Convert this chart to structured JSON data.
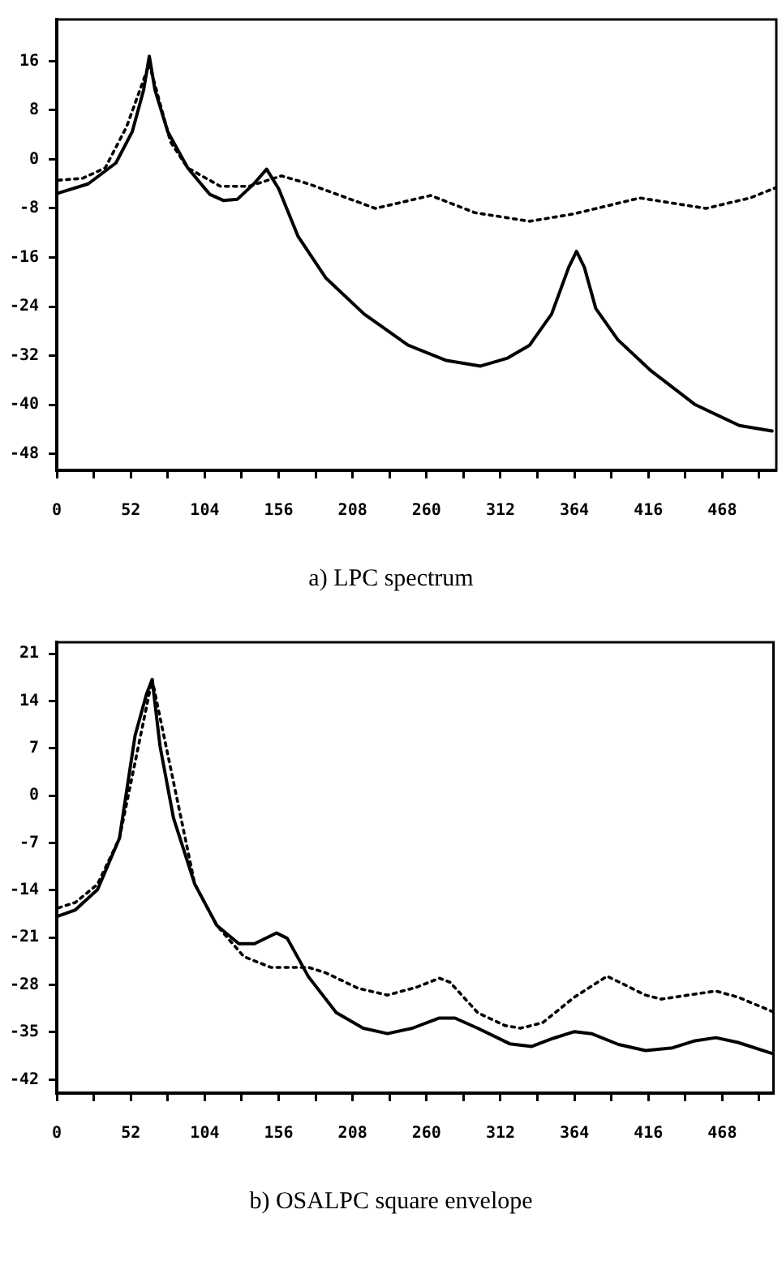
{
  "chart_data": [
    {
      "type": "line",
      "title": "a) LPC spectrum",
      "xlim": [
        0,
        506
      ],
      "ylim": [
        -50.7,
        22.8
      ],
      "xticks": [
        0,
        {
          "value": 26,
          "label": null
        },
        52,
        {
          "value": 78,
          "label": null
        },
        104,
        {
          "value": 130,
          "label": null
        },
        156,
        {
          "value": 182,
          "label": null
        },
        208,
        {
          "value": 234,
          "label": null
        },
        260,
        {
          "value": 286,
          "label": null
        },
        312,
        {
          "value": 338,
          "label": null
        },
        364,
        {
          "value": 390,
          "label": null
        },
        416,
        {
          "value": 442,
          "label": null
        },
        468,
        {
          "value": 494,
          "label": null
        }
      ],
      "yticks": [
        -48,
        -40,
        -32,
        -24,
        -16,
        -8,
        0,
        8,
        16
      ],
      "grid": false,
      "legend": false,
      "series": [
        {
          "color": "#000000",
          "line_style": "solid",
          "x": [
            1,
            22,
            41.5,
            53,
            61,
            65,
            69,
            78,
            92,
            107.5,
            117,
            127,
            138.5,
            147.5,
            156,
            169.5,
            189,
            216,
            247,
            274,
            298,
            317,
            332.5,
            348,
            360,
            365.5,
            371,
            379,
            394.5,
            418,
            449,
            480,
            503
          ],
          "values": [
            -5.5,
            -4,
            -0.6,
            4.5,
            11.3,
            16.8,
            11.3,
            4.5,
            -1.4,
            -5.7,
            -6.7,
            -6.5,
            -4,
            -1.6,
            -4.8,
            -12.5,
            -19.3,
            -25.2,
            -30.3,
            -32.8,
            -33.7,
            -32.4,
            -30.3,
            -25.2,
            -17.6,
            -15,
            -17.6,
            -24.3,
            -29.4,
            -34.5,
            -40,
            -43.4,
            -44.3
          ]
        },
        {
          "color": "#000000",
          "line_style": "dotted",
          "x": [
            1,
            18,
            34,
            49,
            65,
            80,
            92,
            115,
            135,
            158,
            177,
            224,
            263,
            294,
            332.5,
            363.5,
            410,
            456.5,
            487.5,
            506
          ],
          "values": [
            -3.4,
            -3.1,
            -1.4,
            5.3,
            15.5,
            2.8,
            -1.4,
            -4.4,
            -4.4,
            -2.7,
            -4,
            -8,
            -5.9,
            -8.7,
            -10.1,
            -8.9,
            -6.3,
            -8,
            -6.3,
            -4.6
          ]
        }
      ]
    },
    {
      "type": "line",
      "title": "b) OSALPC square envelope",
      "xlim": [
        0,
        504
      ],
      "ylim": [
        -44,
        22.7
      ],
      "xticks": [
        0,
        {
          "value": 26,
          "label": null
        },
        52,
        {
          "value": 78,
          "label": null
        },
        104,
        {
          "value": 130,
          "label": null
        },
        156,
        {
          "value": 182,
          "label": null
        },
        208,
        {
          "value": 234,
          "label": null
        },
        260,
        {
          "value": 286,
          "label": null
        },
        312,
        {
          "value": 338,
          "label": null
        },
        364,
        {
          "value": 390,
          "label": null
        },
        416,
        {
          "value": 442,
          "label": null
        },
        468,
        {
          "value": 494,
          "label": null
        }
      ],
      "yticks": [
        -42,
        -35,
        -28,
        -21,
        -14,
        -7,
        0,
        7,
        14,
        21
      ],
      "grid": false,
      "legend": false,
      "series": [
        {
          "color": "#000000",
          "line_style": "solid",
          "x": [
            1,
            13,
            28.6,
            44,
            55,
            63,
            67,
            72.5,
            82,
            97,
            112.5,
            128,
            139,
            154.5,
            162,
            177,
            196.5,
            215.5,
            232.5,
            250,
            269,
            280,
            296,
            318.5,
            334,
            349,
            364,
            376,
            395,
            414,
            433,
            448,
            463.5,
            479,
            504
          ],
          "values": [
            -17.8,
            -16.9,
            -13.9,
            -6.3,
            8.9,
            15,
            17.2,
            7.4,
            -3.3,
            -13.1,
            -19.2,
            -21.9,
            -21.9,
            -20.3,
            -21.1,
            -26.8,
            -32.1,
            -34.4,
            -35.2,
            -34.4,
            -32.9,
            -32.9,
            -34.4,
            -36.7,
            -37.1,
            -35.9,
            -34.9,
            -35.2,
            -36.8,
            -37.7,
            -37.3,
            -36.3,
            -35.8,
            -36.5,
            -38.2
          ]
        },
        {
          "color": "#000000",
          "line_style": "dotted",
          "x": [
            1,
            13,
            28.6,
            44,
            67,
            97,
            112.5,
            131.5,
            150.5,
            177,
            189,
            212,
            232.5,
            253.5,
            269,
            276.5,
            296,
            315,
            326,
            341.5,
            364,
            387,
            414,
            425,
            444,
            463.5,
            479,
            504
          ],
          "values": [
            -16.6,
            -15.8,
            -13.1,
            -6.3,
            17.2,
            -13.1,
            -19.2,
            -23.8,
            -25.4,
            -25.4,
            -26.2,
            -28.5,
            -29.5,
            -28.3,
            -27,
            -27.6,
            -32.1,
            -34,
            -34.4,
            -33.6,
            -29.8,
            -26.7,
            -29.5,
            -30.1,
            -29.5,
            -28.9,
            -29.8,
            -32
          ]
        }
      ]
    }
  ]
}
